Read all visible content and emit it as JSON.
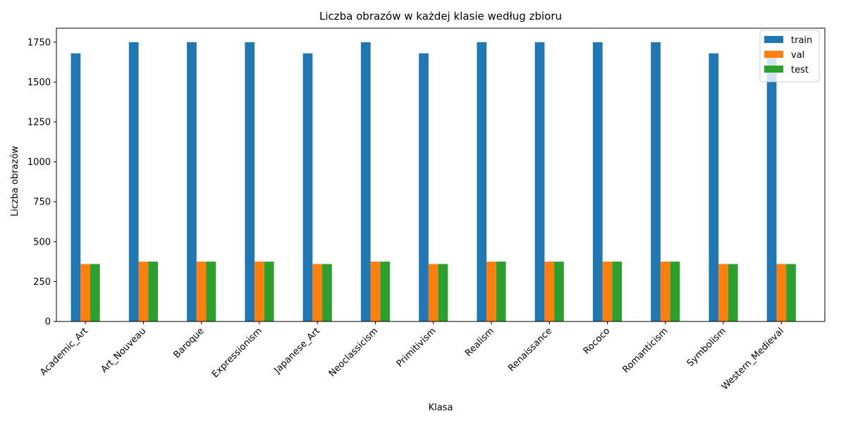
{
  "chart_data": {
    "type": "bar",
    "title": "Liczba obrazów w każdej klasie według zbioru",
    "xlabel": "Klasa",
    "ylabel": "Liczba obrazów",
    "categories": [
      "Academic_Art",
      "Art_Nouveau",
      "Baroque",
      "Expressionism",
      "Japanese_Art",
      "Neoclassicism",
      "Primitivism",
      "Realism",
      "Renaissance",
      "Rococo",
      "Romanticism",
      "Symbolism",
      "Western_Medieval"
    ],
    "series": [
      {
        "name": "train",
        "color": "#1f77b4",
        "values": [
          1680,
          1750,
          1750,
          1750,
          1680,
          1750,
          1680,
          1750,
          1750,
          1750,
          1750,
          1680,
          1680
        ]
      },
      {
        "name": "val",
        "color": "#ff7f0e",
        "values": [
          360,
          375,
          375,
          375,
          360,
          375,
          360,
          375,
          375,
          375,
          375,
          360,
          360
        ]
      },
      {
        "name": "test",
        "color": "#2ca02c",
        "values": [
          360,
          375,
          375,
          375,
          360,
          375,
          360,
          375,
          375,
          375,
          375,
          360,
          360
        ]
      }
    ],
    "ylim": [
      0,
      1837.5
    ],
    "yticks": [
      0,
      250,
      500,
      750,
      1000,
      1250,
      1500,
      1750
    ],
    "grid": false,
    "legend_position": "top-right"
  }
}
